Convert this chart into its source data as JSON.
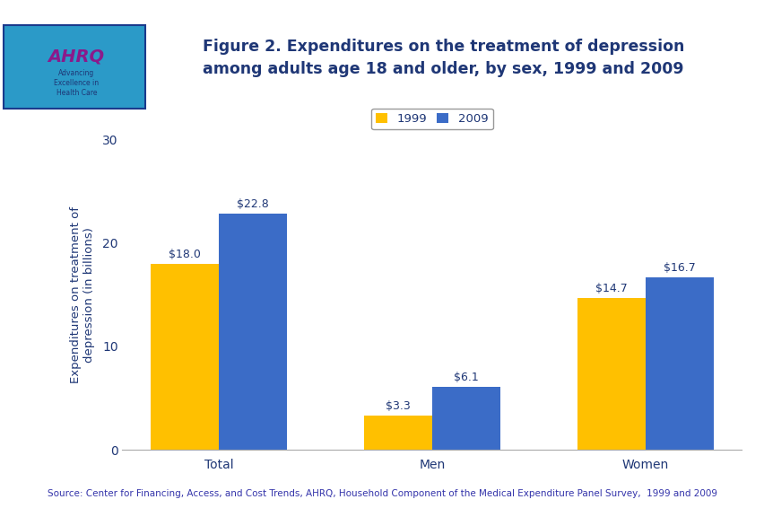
{
  "title_line1": "Figure 2. Expenditures on the treatment of depression",
  "title_line2": "among adults age 18 and older, by sex, 1999 and 2009",
  "categories": [
    "Total",
    "Men",
    "Women"
  ],
  "values_1999": [
    18.0,
    3.3,
    14.7
  ],
  "values_2009": [
    22.8,
    6.1,
    16.7
  ],
  "labels_1999": [
    "$18.0",
    "$3.3",
    "$14.7"
  ],
  "labels_2009": [
    "$22.8",
    "$6.1",
    "$16.7"
  ],
  "color_1999": "#FFC000",
  "color_2009": "#3B6CC7",
  "ylabel": "Expenditures on treatment of\ndepression (in billions)",
  "ylim": [
    0,
    30
  ],
  "yticks": [
    0,
    10,
    20,
    30
  ],
  "legend_labels": [
    "1999",
    "2009"
  ],
  "source_text": "Source: Center for Financing, Access, and Cost Trends, AHRQ, Household Component of the Medical Expenditure Panel Survey,  1999 and 2009",
  "title_color": "#1F3776",
  "axis_label_color": "#1F3776",
  "tick_label_color": "#1F3776",
  "bar_label_color": "#1F3776",
  "source_color": "#3333AA",
  "legend_border_color": "#808080",
  "header_bg_color": "#1A3A8C",
  "top_stripe_color": "#1A3A8C",
  "bottom_border_color": "#1A3A8C",
  "background_color": "#FFFFFF",
  "bar_width": 0.32,
  "title_fontsize": 12.5,
  "axis_label_fontsize": 9.5,
  "tick_fontsize": 10,
  "bar_label_fontsize": 9,
  "legend_fontsize": 9.5,
  "source_fontsize": 7.5
}
